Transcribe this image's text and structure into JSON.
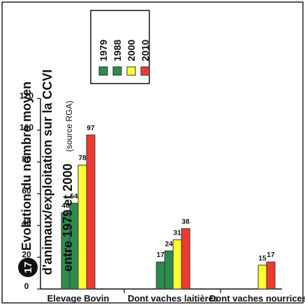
{
  "chart_data": {
    "type": "bar",
    "orientation": "horizontal",
    "badge": "17",
    "title_lines": [
      "Evolution du nombre moyen",
      "d'animaux/exploitation sur la CCVI",
      "entre 1979 et 2000"
    ],
    "source": "(source RGA)",
    "categories": [
      "Elevage Bovin",
      "Dont vaches laitières",
      "Dont vaches nourrices"
    ],
    "series": [
      {
        "name": "1979",
        "color": "#2e8b4e",
        "values": [
          48,
          17,
          null
        ]
      },
      {
        "name": "1988",
        "color": "#2e8b4e",
        "values": [
          54,
          24,
          null
        ]
      },
      {
        "name": "2000",
        "color": "#ffff33",
        "values": [
          78,
          31,
          15
        ]
      },
      {
        "name": "2010",
        "color": "#ee3a30",
        "values": [
          97,
          38,
          17
        ]
      }
    ],
    "value_labels": [
      [
        "48",
        "54",
        "78",
        "97"
      ],
      [
        "17",
        "24",
        "31",
        "38"
      ],
      [
        "",
        "",
        "15",
        "17"
      ]
    ],
    "xlim": [
      0,
      120
    ],
    "ticks": [
      0,
      20,
      40,
      60,
      80,
      100,
      120
    ],
    "tick_labels": [
      "0",
      "20",
      "40",
      "60",
      "80",
      "100",
      "120"
    ],
    "grid": false,
    "legend_position": "top-right"
  }
}
